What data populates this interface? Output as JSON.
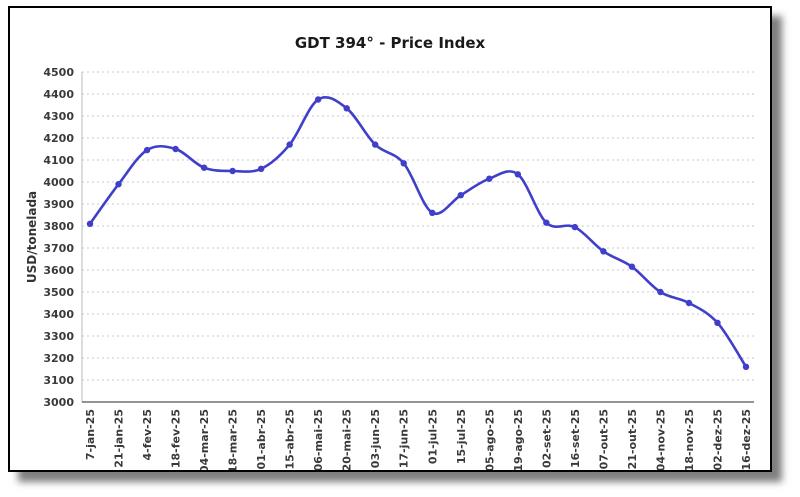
{
  "window": {
    "background": "#ffffff",
    "frame_border_color": "#000000"
  },
  "chart_data": {
    "type": "line",
    "title": "GDT 394° - Price Index",
    "ylabel": "USD/tonelada",
    "xlabel": "",
    "ylim": [
      3000,
      4500
    ],
    "ytick_step": 100,
    "grid": "horizontal-dotted",
    "legend": "none",
    "line_color": "#3f3fc9",
    "point_color": "#3f3fc9",
    "categories": [
      "7-jan-25",
      "21-jan-25",
      "4-fev-25",
      "18-fev-25",
      "04-mar-25",
      "18-mar-25",
      "01-abr-25",
      "15-abr-25",
      "06-mai-25",
      "20-mai-25",
      "03-jun-25",
      "17-jun-25",
      "01-jul-25",
      "15-jul-25",
      "05-ago-25",
      "19-ago-25",
      "02-set-25",
      "16-set-25",
      "07-out-25",
      "21-out-25",
      "04-nov-25",
      "18-nov-25",
      "02-dez-25",
      "16-dez-25"
    ],
    "values": [
      3810,
      3990,
      4145,
      4150,
      4065,
      4050,
      4060,
      4170,
      4375,
      4335,
      4170,
      4085,
      3860,
      3940,
      4015,
      4035,
      3815,
      3795,
      3685,
      3615,
      3500,
      3450,
      3360,
      3160
    ]
  }
}
